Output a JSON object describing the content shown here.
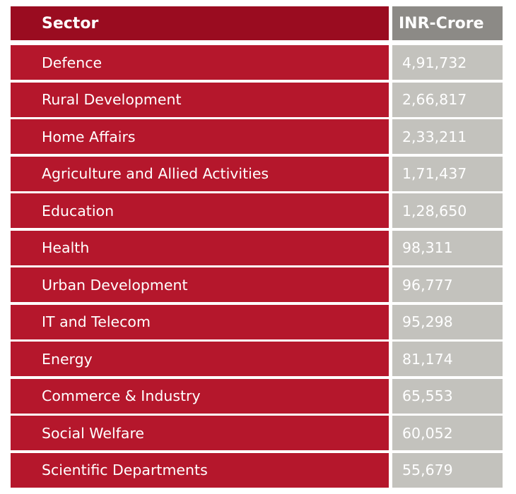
{
  "table": {
    "headers": {
      "sector": "Sector",
      "value": "INR-Crore"
    },
    "rows": [
      {
        "sector": "Defence",
        "value": "4,91,732"
      },
      {
        "sector": "Rural Development",
        "value": "2,66,817"
      },
      {
        "sector": "Home Affairs",
        "value": "2,33,211"
      },
      {
        "sector": "Agriculture and Allied Activities",
        "value": "1,71,437"
      },
      {
        "sector": "Education",
        "value": "1,28,650"
      },
      {
        "sector": "Health",
        "value": "98,311"
      },
      {
        "sector": "Urban Development",
        "value": "96,777"
      },
      {
        "sector": "IT and Telecom",
        "value": "95,298"
      },
      {
        "sector": "Energy",
        "value": "81,174"
      },
      {
        "sector": "Commerce & Industry",
        "value": "65,553"
      },
      {
        "sector": "Social Welfare",
        "value": "60,052"
      },
      {
        "sector": "Scientific Departments",
        "value": "55,679"
      }
    ]
  },
  "colors": {
    "sector_cell": "#b5172c",
    "sector_header": "#9a0c20",
    "value_cell": "#c3c2bd",
    "value_header": "#8c8a86",
    "text": "#ffffff"
  }
}
